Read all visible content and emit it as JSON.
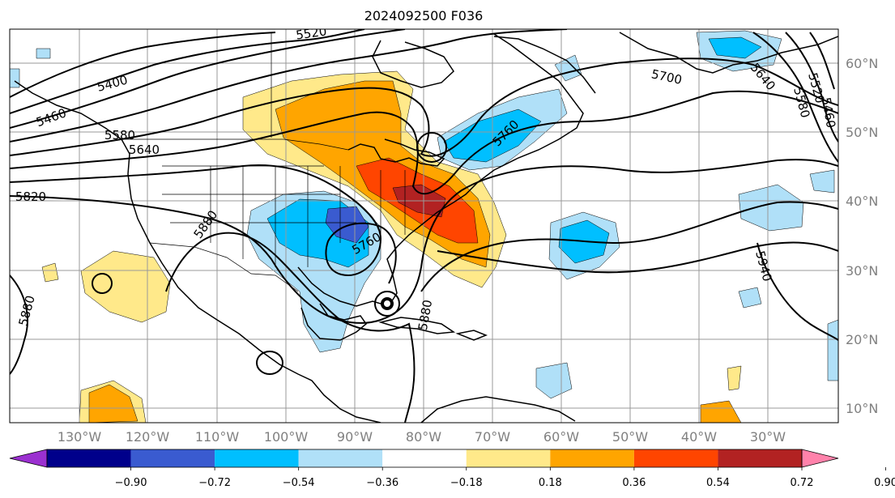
{
  "title": "2024092500 F036",
  "map": {
    "lon_labels": [
      "130°W",
      "120°W",
      "110°W",
      "100°W",
      "90°W",
      "80°W",
      "70°W",
      "60°W",
      "50°W",
      "40°W",
      "30°W"
    ],
    "lat_labels": [
      "60°N",
      "50°N",
      "40°N",
      "30°N",
      "20°N",
      "10°N"
    ]
  },
  "contour_labels": [
    "5520",
    "5400",
    "5460",
    "5580",
    "5640",
    "5700",
    "5820",
    "5880",
    "5760",
    "5940",
    "5640",
    "5580",
    "5520",
    "5460",
    "5880",
    "5760",
    "5880",
    "5880"
  ],
  "colorbar": {
    "ticks": [
      "−0.90",
      "−0.72",
      "−0.54",
      "−0.36",
      "−0.18",
      "0.18",
      "0.36",
      "0.54",
      "0.72",
      "0.90"
    ],
    "colors": [
      "#9b30d0",
      "#00008b",
      "#3a5bd0",
      "#00bfff",
      "#b0e0f8",
      "#ffffff",
      "#ffe98a",
      "#ffa500",
      "#ff4500",
      "#b22222",
      "#ff82ab"
    ]
  },
  "shading_colors": {
    "lightblue": "#b0e0f8",
    "blue": "#00bfff",
    "medblue": "#3a5bd0",
    "yellow": "#ffe98a",
    "orange": "#ffa500",
    "redorange": "#ff4500",
    "darkred": "#b22222"
  }
}
